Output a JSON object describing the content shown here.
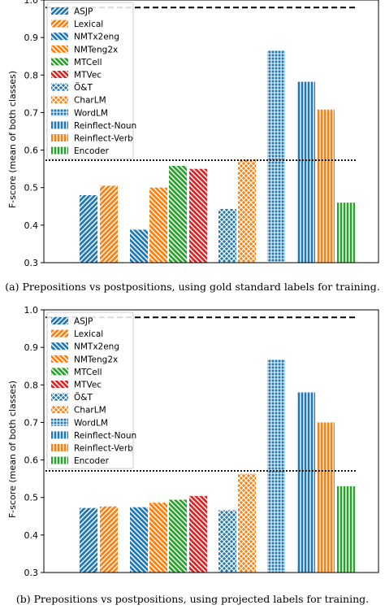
{
  "figure": {
    "captions": [
      "(a) Prepositions vs postpositions, using gold standard labels for training.",
      "(b) Prepositions vs postpositions, using projected labels for training."
    ]
  },
  "legend": [
    {
      "label": "ASJP",
      "color": "#1f77b4",
      "pattern": "diag-left"
    },
    {
      "label": "Lexical",
      "color": "#ff7f0e",
      "pattern": "diag-left"
    },
    {
      "label": "NMTx2eng",
      "color": "#1f77b4",
      "pattern": "diag-right"
    },
    {
      "label": "NMTeng2x",
      "color": "#ff7f0e",
      "pattern": "diag-right"
    },
    {
      "label": "MTCell",
      "color": "#2ca02c",
      "pattern": "diag-right"
    },
    {
      "label": "MTVec",
      "color": "#d62728",
      "pattern": "diag-right"
    },
    {
      "label": "Ö&T",
      "color": "#1f77b4",
      "pattern": "cross"
    },
    {
      "label": "CharLM",
      "color": "#ff7f0e",
      "pattern": "cross"
    },
    {
      "label": "WordLM",
      "color": "#1f77b4",
      "pattern": "grid"
    },
    {
      "label": "Reinflect-Noun",
      "color": "#1f77b4",
      "pattern": "vertical"
    },
    {
      "label": "Reinflect-Verb",
      "color": "#ff7f0e",
      "pattern": "vertical"
    },
    {
      "label": "Encoder",
      "color": "#2ca02c",
      "pattern": "vertical"
    }
  ],
  "chart_data": [
    {
      "type": "bar",
      "ylabel": "F-score (mean of both classes)",
      "ylim": [
        0.3,
        1.0
      ],
      "yticks": [
        "0.3",
        "0.4",
        "0.5",
        "0.6",
        "0.7",
        "0.8",
        "0.9",
        "1.0"
      ],
      "categories": [
        "ASJP",
        "Lexical",
        "NMTx2eng",
        "NMTeng2x",
        "MTCell",
        "MTVec",
        "Ö&T",
        "CharLM",
        "WordLM",
        "Reinflect-Noun",
        "Reinflect-Verb",
        "Encoder"
      ],
      "values": [
        0.48,
        0.505,
        0.388,
        0.5,
        0.558,
        0.55,
        0.443,
        0.575,
        0.866,
        0.782,
        0.708,
        0.46
      ],
      "reference_lines": [
        {
          "style": "dashed",
          "y": 0.98
        },
        {
          "style": "dotted",
          "y": 0.573
        }
      ],
      "legend_position": "upper-left"
    },
    {
      "type": "bar",
      "ylabel": "F-score (mean of both classes)",
      "ylim": [
        0.3,
        1.0
      ],
      "yticks": [
        "0.3",
        "0.4",
        "0.5",
        "0.6",
        "0.7",
        "0.8",
        "0.9",
        "1.0"
      ],
      "categories": [
        "ASJP",
        "Lexical",
        "NMTx2eng",
        "NMTeng2x",
        "MTCell",
        "MTVec",
        "Ö&T",
        "CharLM",
        "WordLM",
        "Reinflect-Noun",
        "Reinflect-Verb",
        "Encoder"
      ],
      "values": [
        0.472,
        0.476,
        0.474,
        0.486,
        0.494,
        0.504,
        0.466,
        0.563,
        0.868,
        0.78,
        0.7,
        0.53
      ],
      "reference_lines": [
        {
          "style": "dashed",
          "y": 0.98
        },
        {
          "style": "dotted",
          "y": 0.571
        }
      ],
      "legend_position": "upper-left"
    }
  ]
}
